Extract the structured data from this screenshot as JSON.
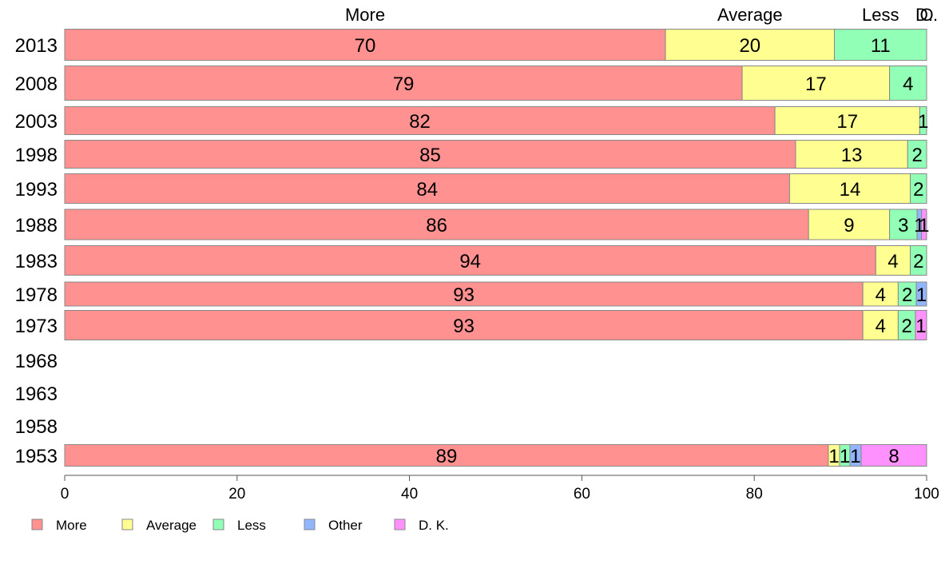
{
  "chart_data": {
    "type": "bar",
    "orientation": "horizontal",
    "stacked": true,
    "categories": [
      "2013",
      "2008",
      "2003",
      "1998",
      "1993",
      "1988",
      "1983",
      "1978",
      "1973",
      "1968",
      "1963",
      "1958",
      "1953"
    ],
    "series": [
      {
        "name": "More",
        "top_label": "More",
        "color": "#ff9191",
        "values": [
          69.7,
          78.6,
          82.4,
          84.8,
          84.1,
          86.3,
          94.1,
          92.6,
          92.6,
          null,
          null,
          null,
          88.6
        ]
      },
      {
        "name": "Average",
        "top_label": "Average",
        "color": "#ffff91",
        "values": [
          19.6,
          17.1,
          16.8,
          13.0,
          14.0,
          9.4,
          4.0,
          4.1,
          4.1,
          null,
          null,
          null,
          1.3
        ]
      },
      {
        "name": "Less",
        "top_label": "Less",
        "color": "#91ffb6",
        "values": [
          10.7,
          4.3,
          0.8,
          2.2,
          1.9,
          3.2,
          1.9,
          2.1,
          2.0,
          null,
          null,
          null,
          1.2
        ]
      },
      {
        "name": "Other",
        "top_label": "O",
        "color": "#91b6ff",
        "values": [
          0,
          0,
          0,
          0,
          0,
          0.5,
          0,
          1.2,
          0,
          null,
          null,
          null,
          1.3
        ]
      },
      {
        "name": "D. K.",
        "top_label": "D..",
        "color": "#ff91ff",
        "values": [
          0,
          0,
          0,
          0,
          0,
          0.6,
          0,
          0,
          1.3,
          null,
          null,
          null,
          7.6
        ]
      }
    ],
    "data_labels": [
      [
        "70",
        "20",
        "11",
        "",
        ""
      ],
      [
        "79",
        "17",
        "4",
        "",
        ""
      ],
      [
        "82",
        "17",
        "1",
        "",
        ""
      ],
      [
        "85",
        "13",
        "2",
        "",
        ""
      ],
      [
        "84",
        "14",
        "2",
        "",
        ""
      ],
      [
        "86",
        "9",
        "3",
        "1",
        "1"
      ],
      [
        "94",
        "4",
        "2",
        "",
        ""
      ],
      [
        "93",
        "4",
        "2",
        "1",
        ""
      ],
      [
        "93",
        "4",
        "2",
        "",
        "1"
      ],
      [
        "",
        "",
        "",
        "",
        ""
      ],
      [
        "",
        "",
        "",
        "",
        ""
      ],
      [
        "",
        "",
        "",
        "",
        ""
      ],
      [
        "89",
        "1",
        "1",
        "1",
        "8"
      ]
    ],
    "x_ticks": [
      0,
      20,
      40,
      60,
      80,
      100
    ],
    "xlim": [
      0,
      100
    ],
    "xlabel": "",
    "ylabel": "",
    "legend_position": "bottom-left",
    "grid": false
  }
}
